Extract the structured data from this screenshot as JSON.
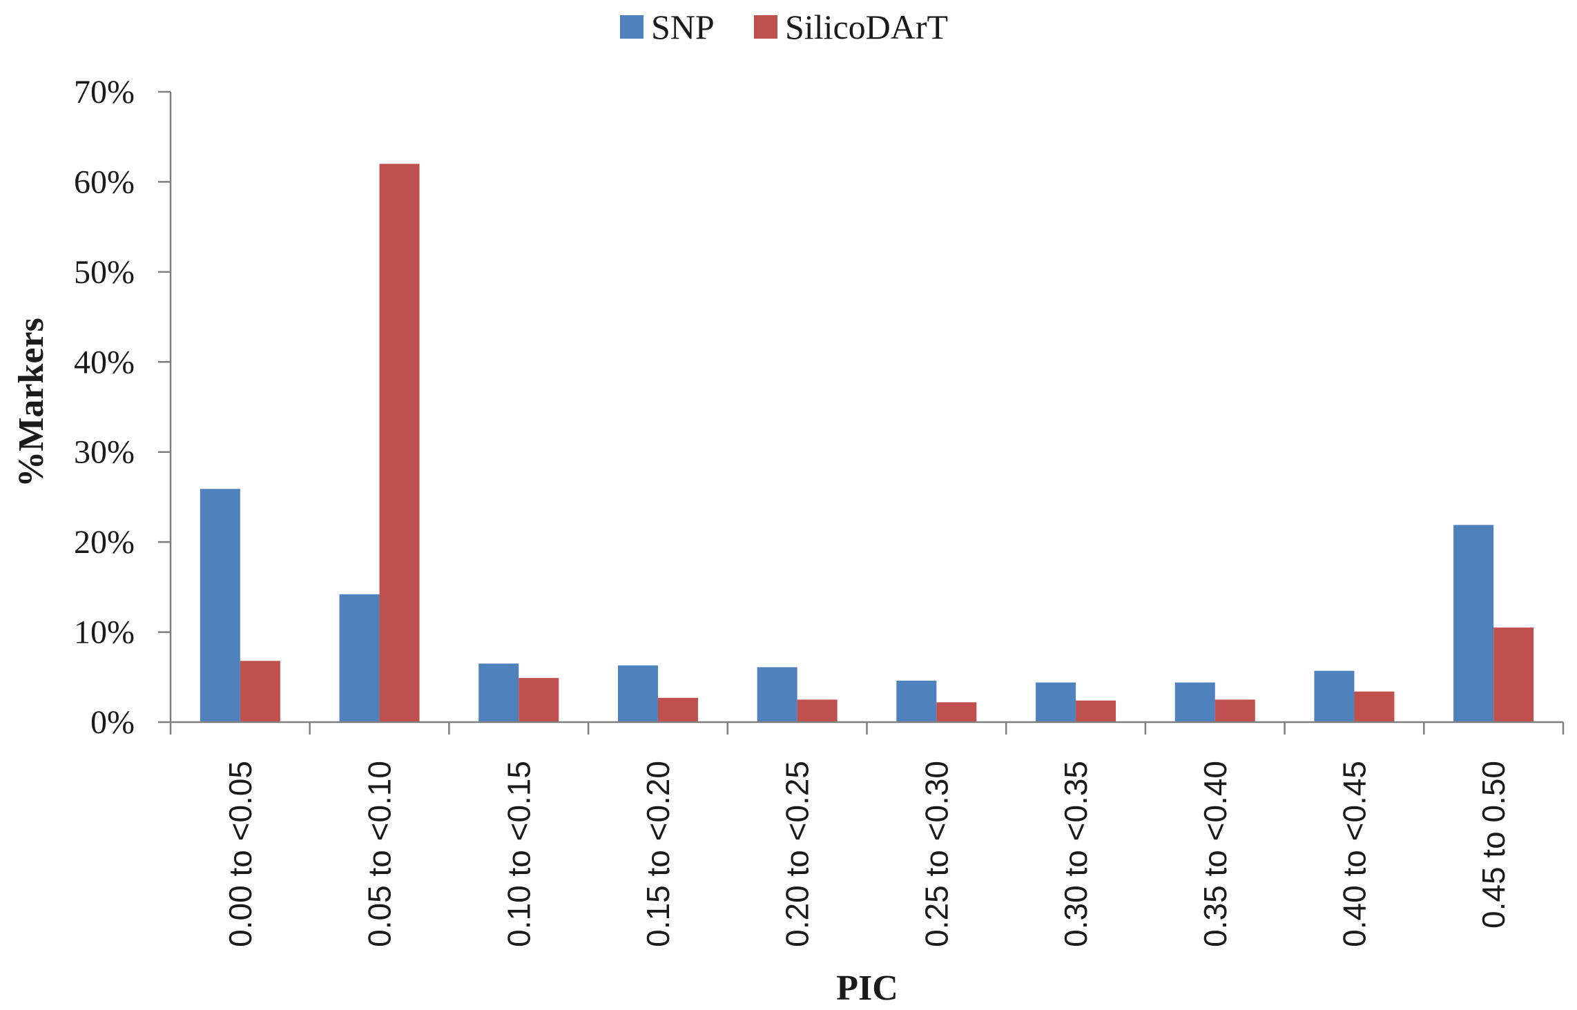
{
  "chart_data": {
    "type": "bar",
    "title": "",
    "xlabel": "PIC",
    "ylabel": "%Markers",
    "ylim": [
      0,
      70
    ],
    "y_ticks": [
      "0%",
      "10%",
      "20%",
      "30%",
      "40%",
      "50%",
      "60%",
      "70%"
    ],
    "y_tick_values": [
      0,
      10,
      20,
      30,
      40,
      50,
      60,
      70
    ],
    "legend_position": "top-center",
    "grid": false,
    "categories": [
      "0.00 to <0.05",
      "0.05 to <0.10",
      "0.10 to <0.15",
      "0.15 to <0.20",
      "0.20 to <0.25",
      "0.25 to <0.30",
      "0.30 to <0.35",
      "0.35 to <0.40",
      "0.40 to <0.45",
      "0.45 to 0.50"
    ],
    "series": [
      {
        "name": "SNP",
        "color": "#4F81BD",
        "values": [
          25.9,
          14.2,
          6.5,
          6.3,
          6.1,
          4.6,
          4.4,
          4.4,
          5.7,
          21.9
        ]
      },
      {
        "name": "SilicoDArT",
        "color": "#C0504D",
        "values": [
          6.8,
          62.0,
          4.9,
          2.7,
          2.5,
          2.2,
          2.4,
          2.5,
          3.4,
          10.5
        ]
      }
    ]
  }
}
